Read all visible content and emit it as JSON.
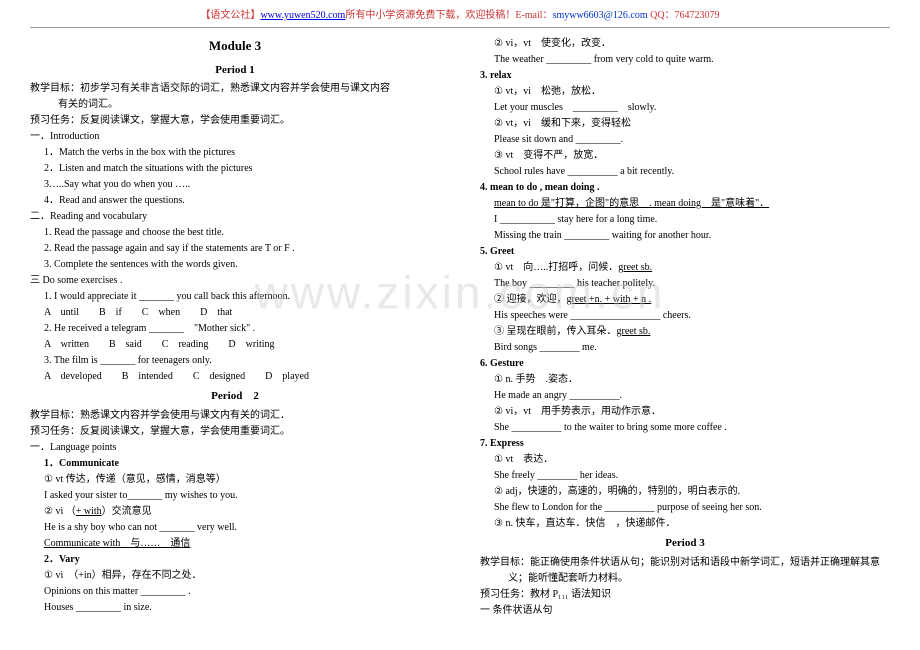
{
  "header": {
    "part1": "【语文公社】",
    "url": "www.yuwen520.com",
    "part2": "所有中小学资源免费下载，欢迎投稿！E-mail：",
    "email": "smyww6603@126.com",
    "part3": " QQ：764723079"
  },
  "watermark": "www.zixin.com.cn",
  "left": {
    "moduleTitle": "Module 3",
    "period1": {
      "heading": "Period 1",
      "goal1": "教学目标：初步学习有关非言语交际的词汇，熟悉课文内容并学会使用与课文内容",
      "goal2": "有关的词汇。",
      "pretask": "预习任务：反复阅读课文，掌握大意，学会使用重要词汇。",
      "s1title": "一．Introduction",
      "s1items": [
        "1．Match the verbs in the box with the pictures",
        "2．Listen and match the situations with the pictures",
        "3…..Say what you do when you …..",
        "4．Read and answer the questions."
      ],
      "s2title": "二．Reading and vocabulary",
      "s2items": [
        "1. Read the passage and choose the best title.",
        "2. Read the passage again and say if the statements are T or F .",
        "3. Complete the sentences with the words given."
      ],
      "s3title": "三 Do some exercises .",
      "ex1": "1. I would appreciate it _______ you call back this afternoon.",
      "ex1opts": "A　until　　B　if　　C　when　　D　that",
      "ex2": "2. He received a telegram _______　\"Mother sick\" .",
      "ex2opts": "A　written　　B　said　　C　reading　　D　writing",
      "ex3": "3. The film is _______ for teenagers only.",
      "ex3opts": "A　developed　　B　intended　　C　designed　　D　played"
    },
    "period2": {
      "heading": "Period　2",
      "goal": "教学目标：熟悉课文内容并学会使用与课文内有关的词汇．",
      "pretask": "预习任务：反复阅读课文，掌握大意，学会使用重要词汇。",
      "lp": "一．Language points",
      "p1title": "1．Communicate",
      "p1a": "① vt 传达，传递（意见，感情，消息等）",
      "p1b": "I asked your sister to_______ my wishes to you.",
      "p1c": "② vi （+ with）交流意见",
      "p1d": "He is a shy boy who can not _______ very well.",
      "p1e": "Communicate with　与……　通信",
      "p2title": "2．Vary",
      "p2a": "① vi　（+in）相异，存在不同之处．",
      "p2b": "Opinions on this matter _________ .",
      "p2c": "Houses _________ in size."
    }
  },
  "right": {
    "r1": "② vi，vt　使变化，改变．",
    "r2": "The weather _________ from very cold to quite warm.",
    "p3title": "3. relax",
    "p3a": "① vt，vi　松弛，放松．",
    "p3b": "Let your muscles　_________　slowly.",
    "p3c": "② vt，vi　缓和下来，变得轻松",
    "p3d": "Please sit down and _________.",
    "p3e": "③ vt　变得不严，放宽．",
    "p3f": "School rules have __________ a bit recently.",
    "p4title": "4. mean to do , mean doing .",
    "p4a": "mean to do 是\"打算，企图\"的意思　. mean doing　是\"意味着\"．",
    "p4b": "I ___________ stay here for a long time.",
    "p4c": "Missing the train _________ waiting for another hour.",
    "p5title": "5. Greet",
    "p5a": "① vt　向…..打招呼，问候．",
    "p5a2": "greet sb.",
    "p5b": "The boy _________ his teacher politely.",
    "p5c": "② 迎接，欢迎，",
    "p5c2": "greet +n. + with + n .",
    "p5d": "His speeches were __________________ cheers.",
    "p5e": "③ 呈现在眼前，传入耳朵．",
    "p5e2": "greet sb.",
    "p5f": "Bird songs ________ me.",
    "p6title": "6. Gesture",
    "p6a": "① n. 手势　.姿态．",
    "p6b": "He made an angry __________.",
    "p6c": "② vi，vt　用手势表示，用动作示意．",
    "p6d": "She __________ to the waiter to bring some more coffee .",
    "p7title": "7. Express",
    "p7a": "① vt　表达．",
    "p7b": "She freely ________ her ideas.",
    "p7c": "② adj，快速的，高速的，明确的，特别的，明白表示的.",
    "p7d": "She flew to London for the __________ purpose of seeing her son.",
    "p7e": "③ n. 快车，直达车．快信　，快递邮件．",
    "period3": {
      "heading": "Period 3",
      "goal1": "教学目标：能正确使用条件状语从句；能识别对话和语段中新学词汇，短语并正确理解其意",
      "goal2": "义；能听懂配套听力材料。",
      "pretask": "预习任务：教材 P₁₁₁ 语法知识",
      "s1": "一 条件状语从句"
    }
  }
}
